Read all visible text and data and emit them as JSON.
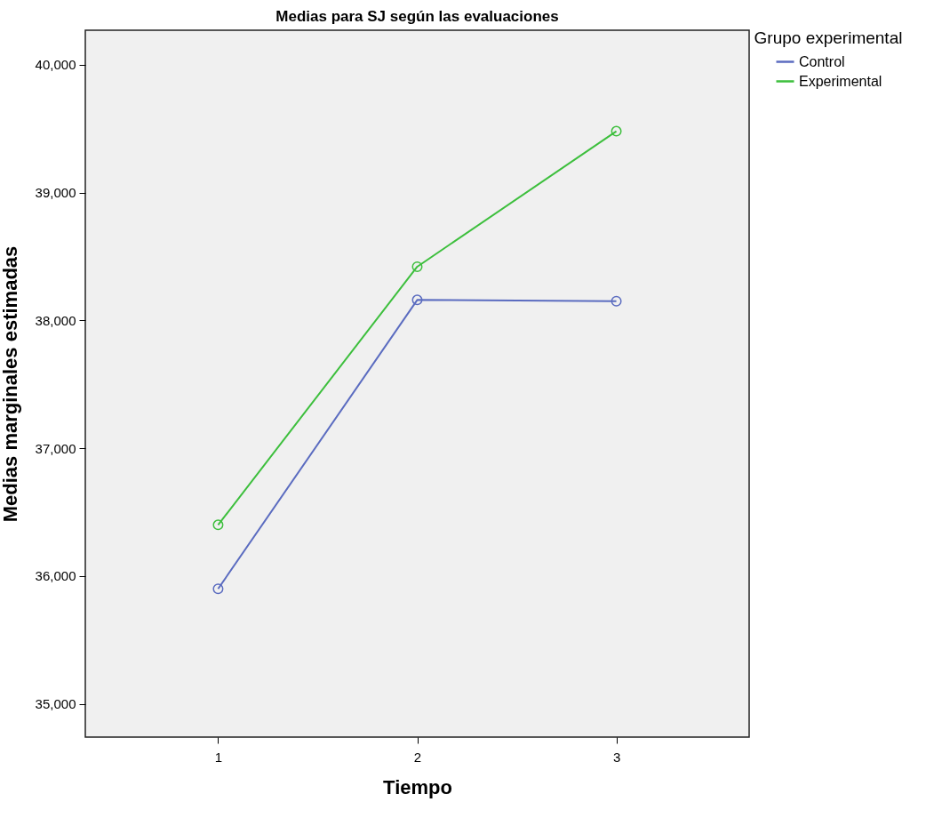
{
  "chart_data": {
    "type": "line",
    "title": "Medias para SJ según las evaluaciones",
    "xlabel": "Tiempo",
    "ylabel": "Medias marginales estimadas",
    "legend_title": "Grupo experimental",
    "categories": [
      "1",
      "2",
      "3"
    ],
    "series": [
      {
        "name": "Control",
        "color": "#5b6cc0",
        "values": [
          35900,
          38160,
          38150
        ]
      },
      {
        "name": "Experimental",
        "color": "#3dbf3d",
        "values": [
          36400,
          38420,
          39480
        ]
      }
    ],
    "ylim": [
      34740,
      40270
    ],
    "yticks": [
      {
        "value": 35000,
        "label": "35,000"
      },
      {
        "value": 36000,
        "label": "36,000"
      },
      {
        "value": 37000,
        "label": "37,000"
      },
      {
        "value": 38000,
        "label": "38,000"
      },
      {
        "value": 39000,
        "label": "39,000"
      },
      {
        "value": 40000,
        "label": "40,000"
      }
    ],
    "grid": false,
    "legend": "top right",
    "marker": "circle",
    "line_style": "solid"
  }
}
